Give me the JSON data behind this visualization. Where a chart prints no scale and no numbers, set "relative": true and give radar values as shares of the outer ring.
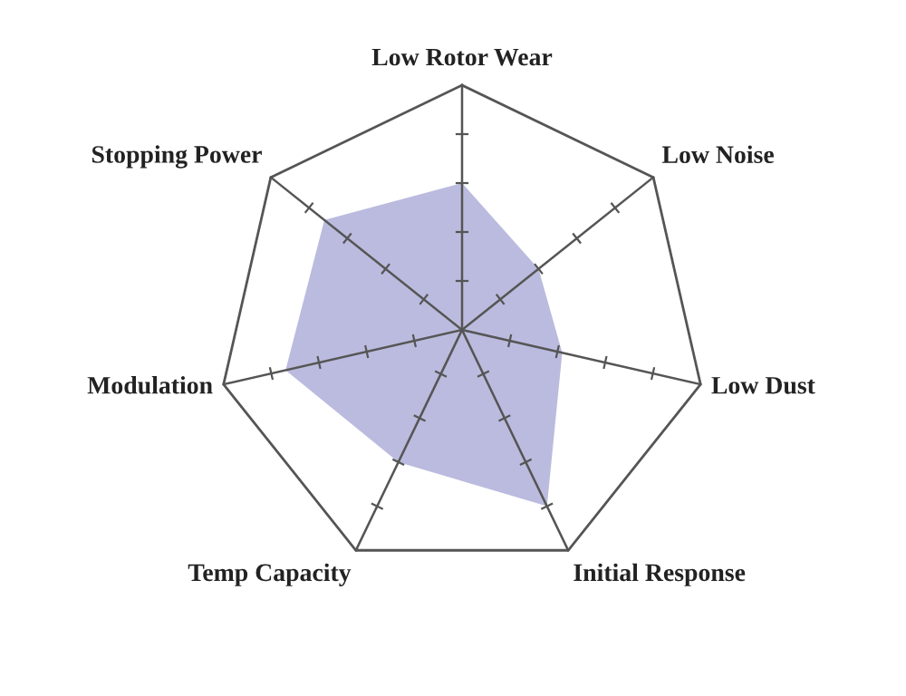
{
  "chart_data": {
    "type": "radar",
    "relative": true,
    "categories": [
      "Low Rotor Wear",
      "Low Noise",
      "Low Dust",
      "Initial Response",
      "Temp Capacity",
      "Modulation",
      "Stopping Power"
    ],
    "series": [
      {
        "color": "#b4b4dc",
        "values": [
          0.6,
          0.4,
          0.42,
          0.8,
          0.6,
          0.74,
          0.72
        ]
      }
    ],
    "legend": false
  }
}
